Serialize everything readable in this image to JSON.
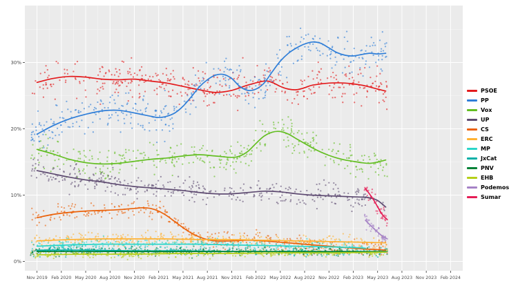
{
  "chart_data": {
    "type": "scatter",
    "title": "",
    "description": "Spanish national election voting intention polls with smoothed trend lines per party",
    "x_domain": [
      -1.5,
      52.5
    ],
    "y_domain": [
      -1.4,
      38.6
    ],
    "panel_bg": "#EBEBEB",
    "grid_major_color": "#FFFFFF",
    "grid_minor_color": "#F5F5F5",
    "axis_tick_color": "#333333",
    "axis_text_color": "#4D4D4D",
    "legend_position": "right",
    "x_ticks": [
      {
        "t": 0,
        "label": "Nov 2019"
      },
      {
        "t": 3,
        "label": "Feb 2020"
      },
      {
        "t": 6,
        "label": "May 2020"
      },
      {
        "t": 9,
        "label": "Aug 2020"
      },
      {
        "t": 12,
        "label": "Nov 2020"
      },
      {
        "t": 15,
        "label": "Feb 2021"
      },
      {
        "t": 18,
        "label": "May 2021"
      },
      {
        "t": 21,
        "label": "Aug 2021"
      },
      {
        "t": 24,
        "label": "Nov 2021"
      },
      {
        "t": 27,
        "label": "Feb 2022"
      },
      {
        "t": 30,
        "label": "May 2022"
      },
      {
        "t": 33,
        "label": "Aug 2022"
      },
      {
        "t": 36,
        "label": "Nov 2022"
      },
      {
        "t": 39,
        "label": "Feb 2023"
      },
      {
        "t": 42,
        "label": "May 2023"
      },
      {
        "t": 45,
        "label": "Aug 2023"
      },
      {
        "t": 48,
        "label": "Nov 2023"
      },
      {
        "t": 51,
        "label": "Feb 2024"
      }
    ],
    "y_ticks": [
      {
        "v": 0,
        "label": "0%"
      },
      {
        "v": 10,
        "label": "10%"
      },
      {
        "v": 20,
        "label": "20%"
      },
      {
        "v": 30,
        "label": "30%"
      }
    ],
    "series": [
      {
        "name": "PSOE",
        "color": "#e31a1c",
        "seed": 11,
        "points": 400,
        "noise": 2.5,
        "point_range": [
          -0.8,
          43.2
        ],
        "trend": [
          [
            0,
            27.0
          ],
          [
            2,
            27.6
          ],
          [
            4,
            27.9
          ],
          [
            6,
            27.8
          ],
          [
            8,
            27.5
          ],
          [
            10,
            27.4
          ],
          [
            12,
            27.5
          ],
          [
            14,
            27.2
          ],
          [
            16,
            26.9
          ],
          [
            18,
            26.4
          ],
          [
            20,
            25.9
          ],
          [
            22,
            25.5
          ],
          [
            24,
            25.8
          ],
          [
            26,
            26.6
          ],
          [
            28,
            27.2
          ],
          [
            29,
            27.0
          ],
          [
            30,
            26.4
          ],
          [
            31,
            26.0
          ],
          [
            32,
            25.9
          ],
          [
            33,
            26.2
          ],
          [
            34,
            26.6
          ],
          [
            36,
            26.9
          ],
          [
            38,
            26.9
          ],
          [
            40,
            26.6
          ],
          [
            42,
            26.0
          ],
          [
            43,
            25.7
          ]
        ]
      },
      {
        "name": "PP",
        "color": "#2f7ed8",
        "seed": 22,
        "points": 400,
        "noise": 2.5,
        "point_range": [
          -0.8,
          43.2
        ],
        "trend": [
          [
            0,
            19.2
          ],
          [
            2,
            20.5
          ],
          [
            4,
            21.5
          ],
          [
            6,
            22.2
          ],
          [
            8,
            22.7
          ],
          [
            10,
            22.8
          ],
          [
            12,
            22.4
          ],
          [
            14,
            21.9
          ],
          [
            15,
            21.7
          ],
          [
            16,
            21.9
          ],
          [
            17,
            22.4
          ],
          [
            18,
            23.4
          ],
          [
            19,
            24.8
          ],
          [
            20,
            26.3
          ],
          [
            21,
            27.4
          ],
          [
            22,
            28.1
          ],
          [
            23,
            28.2
          ],
          [
            24,
            27.6
          ],
          [
            25,
            26.4
          ],
          [
            26,
            25.8
          ],
          [
            27,
            26.0
          ],
          [
            28,
            26.9
          ],
          [
            29,
            28.6
          ],
          [
            30,
            30.2
          ],
          [
            31,
            31.4
          ],
          [
            32,
            32.2
          ],
          [
            33,
            32.8
          ],
          [
            34,
            33.1
          ],
          [
            35,
            32.9
          ],
          [
            36,
            32.2
          ],
          [
            37,
            31.5
          ],
          [
            38,
            31.1
          ],
          [
            39,
            31.0
          ],
          [
            40,
            31.2
          ],
          [
            41,
            31.4
          ],
          [
            42,
            31.3
          ],
          [
            43,
            31.4
          ]
        ]
      },
      {
        "name": "Vox",
        "color": "#63BE21",
        "seed": 33,
        "points": 380,
        "noise": 2.1,
        "point_range": [
          -0.8,
          43.2
        ],
        "trend": [
          [
            0,
            16.9
          ],
          [
            2,
            16.2
          ],
          [
            4,
            15.4
          ],
          [
            6,
            14.9
          ],
          [
            8,
            14.7
          ],
          [
            10,
            14.8
          ],
          [
            12,
            15.1
          ],
          [
            14,
            15.4
          ],
          [
            16,
            15.6
          ],
          [
            18,
            15.9
          ],
          [
            20,
            16.1
          ],
          [
            22,
            15.9
          ],
          [
            24,
            15.7
          ],
          [
            25,
            15.9
          ],
          [
            26,
            16.6
          ],
          [
            27,
            17.8
          ],
          [
            28,
            18.9
          ],
          [
            29,
            19.5
          ],
          [
            30,
            19.6
          ],
          [
            31,
            19.2
          ],
          [
            32,
            18.5
          ],
          [
            33,
            17.8
          ],
          [
            34,
            17.1
          ],
          [
            35,
            16.5
          ],
          [
            36,
            16.0
          ],
          [
            37,
            15.6
          ],
          [
            38,
            15.3
          ],
          [
            39,
            15.1
          ],
          [
            40,
            14.9
          ],
          [
            41,
            14.8
          ],
          [
            42,
            15.0
          ],
          [
            43,
            15.3
          ]
        ]
      },
      {
        "name": "UP",
        "color": "#5E4B71",
        "seed": 44,
        "points": 360,
        "noise": 1.5,
        "point_range": [
          -0.8,
          43.0
        ],
        "trend": [
          [
            0,
            13.7
          ],
          [
            2,
            13.2
          ],
          [
            4,
            12.7
          ],
          [
            6,
            12.3
          ],
          [
            8,
            12.0
          ],
          [
            10,
            11.6
          ],
          [
            12,
            11.3
          ],
          [
            14,
            11.1
          ],
          [
            16,
            10.9
          ],
          [
            18,
            10.7
          ],
          [
            20,
            10.4
          ],
          [
            22,
            10.2
          ],
          [
            24,
            10.2
          ],
          [
            26,
            10.4
          ],
          [
            28,
            10.6
          ],
          [
            30,
            10.5
          ],
          [
            32,
            10.2
          ],
          [
            34,
            10.0
          ],
          [
            36,
            9.9
          ],
          [
            38,
            9.8
          ],
          [
            40,
            9.7
          ],
          [
            41,
            9.6
          ],
          [
            42,
            9.2
          ],
          [
            43,
            8.2
          ]
        ]
      },
      {
        "name": "CS",
        "color": "#EB6109",
        "seed": 55,
        "points": 340,
        "noise": 1.1,
        "point_range": [
          -0.8,
          43.2
        ],
        "trend": [
          [
            0,
            6.6
          ],
          [
            2,
            7.1
          ],
          [
            4,
            7.4
          ],
          [
            6,
            7.6
          ],
          [
            8,
            7.7
          ],
          [
            10,
            7.8
          ],
          [
            12,
            8.0
          ],
          [
            13,
            8.1
          ],
          [
            14,
            8.0
          ],
          [
            15,
            7.6
          ],
          [
            16,
            6.9
          ],
          [
            17,
            6.0
          ],
          [
            18,
            5.1
          ],
          [
            19,
            4.3
          ],
          [
            20,
            3.7
          ],
          [
            21,
            3.3
          ],
          [
            22,
            3.1
          ],
          [
            24,
            3.1
          ],
          [
            26,
            3.2
          ],
          [
            28,
            3.1
          ],
          [
            30,
            2.9
          ],
          [
            32,
            2.7
          ],
          [
            34,
            2.5
          ],
          [
            36,
            2.3
          ],
          [
            38,
            2.1
          ],
          [
            40,
            1.9
          ],
          [
            42,
            1.8
          ],
          [
            43,
            1.7
          ]
        ]
      },
      {
        "name": "ERC",
        "color": "#FFB232",
        "seed": 66,
        "points": 320,
        "noise": 0.85,
        "point_range": [
          -0.8,
          43.2
        ],
        "trend": [
          [
            0,
            3.1
          ],
          [
            4,
            3.3
          ],
          [
            8,
            3.4
          ],
          [
            12,
            3.4
          ],
          [
            16,
            3.4
          ],
          [
            20,
            3.3
          ],
          [
            24,
            3.3
          ],
          [
            28,
            3.2
          ],
          [
            32,
            3.1
          ],
          [
            36,
            3.0
          ],
          [
            40,
            2.9
          ],
          [
            43,
            2.8
          ]
        ]
      },
      {
        "name": "MP",
        "color": "#2AD5C9",
        "seed": 77,
        "points": 300,
        "noise": 0.75,
        "point_range": [
          -0.8,
          40.5
        ],
        "trend": [
          [
            0,
            2.3
          ],
          [
            4,
            2.5
          ],
          [
            8,
            2.6
          ],
          [
            12,
            2.6
          ],
          [
            16,
            2.6
          ],
          [
            20,
            2.6
          ],
          [
            24,
            2.5
          ],
          [
            28,
            2.4
          ],
          [
            32,
            2.3
          ],
          [
            36,
            2.2
          ],
          [
            39,
            2.1
          ],
          [
            40.5,
            2.0
          ]
        ]
      },
      {
        "name": "JxCat",
        "color": "#00AFA6",
        "seed": 88,
        "points": 290,
        "noise": 0.6,
        "point_range": [
          -0.8,
          43.2
        ],
        "trend": [
          [
            0,
            1.7
          ],
          [
            6,
            1.7
          ],
          [
            12,
            1.6
          ],
          [
            18,
            1.6
          ],
          [
            24,
            1.5
          ],
          [
            30,
            1.5
          ],
          [
            36,
            1.4
          ],
          [
            43,
            1.4
          ]
        ]
      },
      {
        "name": "PNV",
        "color": "#008135",
        "seed": 99,
        "points": 290,
        "noise": 0.55,
        "point_range": [
          -0.8,
          43.2
        ],
        "trend": [
          [
            0,
            1.5
          ],
          [
            6,
            1.5
          ],
          [
            12,
            1.5
          ],
          [
            18,
            1.5
          ],
          [
            24,
            1.5
          ],
          [
            30,
            1.5
          ],
          [
            36,
            1.5
          ],
          [
            43,
            1.5
          ]
        ]
      },
      {
        "name": "EHB",
        "color": "#B5CF18",
        "seed": 111,
        "points": 290,
        "noise": 0.5,
        "point_range": [
          -0.8,
          43.2
        ],
        "trend": [
          [
            0,
            1.0
          ],
          [
            6,
            1.1
          ],
          [
            12,
            1.1
          ],
          [
            18,
            1.2
          ],
          [
            24,
            1.2
          ],
          [
            30,
            1.3
          ],
          [
            36,
            1.3
          ],
          [
            43,
            1.4
          ]
        ]
      },
      {
        "name": "Podemos",
        "color": "#A582C6",
        "seed": 123,
        "points": 45,
        "noise": 0.9,
        "point_range": [
          40.3,
          43.3
        ],
        "trend": [
          [
            40.5,
            6.2
          ],
          [
            41.5,
            5.0
          ],
          [
            42.5,
            3.9
          ],
          [
            43.2,
            3.4
          ]
        ]
      },
      {
        "name": "Sumar",
        "color": "#E51C55",
        "seed": 135,
        "points": 45,
        "noise": 1.1,
        "point_range": [
          40.3,
          43.3
        ],
        "trend": [
          [
            40.5,
            11.0
          ],
          [
            41.5,
            9.3
          ],
          [
            42.5,
            7.2
          ],
          [
            43.2,
            6.3
          ]
        ]
      }
    ]
  }
}
